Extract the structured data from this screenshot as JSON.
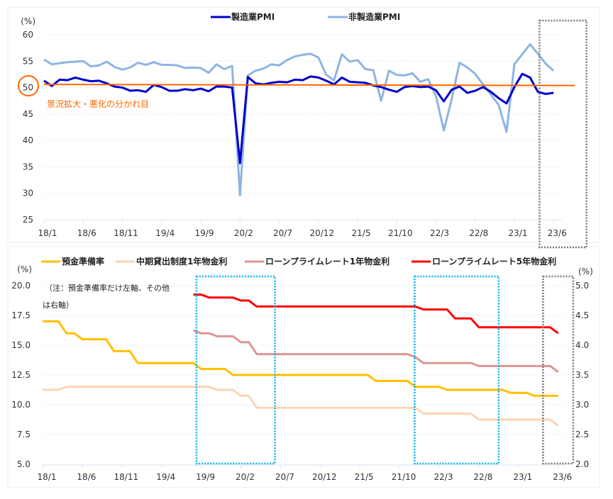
{
  "chart_data": [
    {
      "type": "line",
      "title": "",
      "ylabel": "(%)",
      "ylim": [
        25,
        60
      ],
      "yticks": [
        25,
        30,
        35,
        40,
        45,
        50,
        55,
        60
      ],
      "x_start": "2018/1",
      "x_end": "2023/6",
      "xtick_labels": [
        "18/1",
        "18/6",
        "18/11",
        "19/4",
        "19/9",
        "20/2",
        "20/7",
        "20/12",
        "21/5",
        "21/10",
        "22/3",
        "22/8",
        "23/1",
        "23/6"
      ],
      "grid": true,
      "legend_placement": "top",
      "series": [
        {
          "name": "製造業PMI",
          "color": "#0000cc",
          "values": [
            51.3,
            50.3,
            51.5,
            51.4,
            51.9,
            51.5,
            51.2,
            51.3,
            50.8,
            50.2,
            50.0,
            49.4,
            49.5,
            49.2,
            50.5,
            50.1,
            49.4,
            49.4,
            49.7,
            49.5,
            49.8,
            49.3,
            50.2,
            50.2,
            50.0,
            35.7,
            52.0,
            50.8,
            50.6,
            50.9,
            51.1,
            51.0,
            51.5,
            51.4,
            52.1,
            51.9,
            51.3,
            50.6,
            51.9,
            51.1,
            51.0,
            50.9,
            50.4,
            50.1,
            49.6,
            49.2,
            50.1,
            50.3,
            50.1,
            50.2,
            49.5,
            47.4,
            49.6,
            50.2,
            49.0,
            49.4,
            50.1,
            49.2,
            48.0,
            47.0,
            50.1,
            52.6,
            51.9,
            49.2,
            48.8,
            49.0
          ]
        },
        {
          "name": "非製造業PMI",
          "color": "#8eb4e3",
          "values": [
            55.3,
            54.4,
            54.6,
            54.8,
            54.9,
            55.0,
            54.0,
            54.2,
            54.9,
            53.9,
            53.4,
            53.8,
            54.7,
            54.3,
            54.8,
            54.3,
            54.3,
            54.2,
            53.7,
            53.8,
            53.7,
            52.8,
            54.4,
            53.5,
            54.1,
            29.6,
            52.3,
            53.2,
            53.6,
            54.4,
            54.2,
            55.2,
            55.9,
            56.2,
            56.4,
            55.7,
            52.4,
            51.4,
            56.3,
            54.9,
            55.2,
            53.5,
            53.3,
            47.5,
            53.2,
            52.4,
            52.3,
            52.7,
            51.1,
            51.6,
            48.4,
            41.9,
            47.8,
            54.7,
            53.8,
            52.6,
            50.6,
            48.7,
            46.7,
            41.6,
            54.4,
            56.3,
            58.2,
            56.4,
            54.5,
            53.2
          ]
        }
      ],
      "reference_line": {
        "value": 50,
        "color": "#ff6600",
        "label": "景況拡大・悪化の分かれ目",
        "circled_tick": "50"
      },
      "highlights": [
        {
          "from_month_index": 63.2,
          "to_month_index": 69.2,
          "color": "#777777"
        }
      ]
    },
    {
      "type": "line",
      "ylabel_left": "(%)",
      "ylabel_right": "(%)",
      "ylim_left": [
        5,
        20
      ],
      "yticks_left": [
        "5.0",
        "7.5",
        "10.0",
        "12.5",
        "15.0",
        "17.5",
        "20.0"
      ],
      "ylim_right": [
        2,
        5
      ],
      "yticks_right": [
        "2.0",
        "2.5",
        "3.0",
        "3.5",
        "4.0",
        "4.5",
        "5.0"
      ],
      "x_start": "2018/1",
      "x_end": "2023/6",
      "xtick_labels": [
        "18/1",
        "18/6",
        "18/11",
        "19/4",
        "19/9",
        "20/2",
        "20/7",
        "20/12",
        "21/5",
        "21/10",
        "22/3",
        "22/8",
        "23/1",
        "23/6"
      ],
      "grid": true,
      "legend_placement": "top",
      "note_lines": [
        "（注：預金準備率だけ左軸、その他",
        "は右軸）"
      ],
      "series": [
        {
          "name": "預金準備率",
          "axis": "left",
          "color": "#ffc000",
          "start_index": 0,
          "values": [
            17,
            17,
            17,
            16,
            16,
            15.5,
            15.5,
            15.5,
            15.5,
            14.5,
            14.5,
            14.5,
            13.5,
            13.5,
            13.5,
            13.5,
            13.5,
            13.5,
            13.5,
            13.5,
            13,
            13,
            13,
            13,
            12.5,
            12.5,
            12.5,
            12.5,
            12.5,
            12.5,
            12.5,
            12.5,
            12.5,
            12.5,
            12.5,
            12.5,
            12.5,
            12.5,
            12.5,
            12.5,
            12.5,
            12.5,
            12,
            12,
            12,
            12,
            12,
            11.5,
            11.5,
            11.5,
            11.5,
            11.25,
            11.25,
            11.25,
            11.25,
            11.25,
            11.25,
            11.25,
            11.25,
            11,
            11,
            11,
            10.75,
            10.75,
            10.75,
            10.75
          ]
        },
        {
          "name": "中期貸出制度1年物金利",
          "axis": "right",
          "color": "#fcd5b5",
          "start_index": 0,
          "values": [
            3.25,
            3.25,
            3.25,
            3.3,
            3.3,
            3.3,
            3.3,
            3.3,
            3.3,
            3.3,
            3.3,
            3.3,
            3.3,
            3.3,
            3.3,
            3.3,
            3.3,
            3.3,
            3.3,
            3.3,
            3.3,
            3.3,
            3.25,
            3.25,
            3.25,
            3.15,
            3.15,
            2.95,
            2.95,
            2.95,
            2.95,
            2.95,
            2.95,
            2.95,
            2.95,
            2.95,
            2.95,
            2.95,
            2.95,
            2.95,
            2.95,
            2.95,
            2.95,
            2.95,
            2.95,
            2.95,
            2.95,
            2.95,
            2.85,
            2.85,
            2.85,
            2.85,
            2.85,
            2.85,
            2.85,
            2.75,
            2.75,
            2.75,
            2.75,
            2.75,
            2.75,
            2.75,
            2.75,
            2.75,
            2.75,
            2.65
          ]
        },
        {
          "name": "ローンプライムレート1年物金利",
          "axis": "right",
          "color": "#da9694",
          "start_index": 19,
          "values": [
            4.25,
            4.2,
            4.2,
            4.15,
            4.15,
            4.15,
            4.05,
            4.05,
            3.85,
            3.85,
            3.85,
            3.85,
            3.85,
            3.85,
            3.85,
            3.85,
            3.85,
            3.85,
            3.85,
            3.85,
            3.85,
            3.85,
            3.85,
            3.85,
            3.85,
            3.85,
            3.85,
            3.85,
            3.8,
            3.7,
            3.7,
            3.7,
            3.7,
            3.7,
            3.7,
            3.7,
            3.65,
            3.65,
            3.65,
            3.65,
            3.65,
            3.65,
            3.65,
            3.65,
            3.65,
            3.65,
            3.55
          ]
        },
        {
          "name": "ローンプライムレート5年物金利",
          "axis": "right",
          "color": "#ff0000",
          "start_index": 19,
          "values": [
            4.85,
            4.85,
            4.8,
            4.8,
            4.8,
            4.8,
            4.75,
            4.75,
            4.65,
            4.65,
            4.65,
            4.65,
            4.65,
            4.65,
            4.65,
            4.65,
            4.65,
            4.65,
            4.65,
            4.65,
            4.65,
            4.65,
            4.65,
            4.65,
            4.65,
            4.65,
            4.65,
            4.65,
            4.65,
            4.6,
            4.6,
            4.6,
            4.6,
            4.45,
            4.45,
            4.45,
            4.3,
            4.3,
            4.3,
            4.3,
            4.3,
            4.3,
            4.3,
            4.3,
            4.3,
            4.3,
            4.2
          ]
        }
      ],
      "highlights": [
        {
          "from_month_index": 19.4,
          "to_month_index": 29.3,
          "color": "#00b0f0"
        },
        {
          "from_month_index": 46.9,
          "to_month_index": 57.5,
          "color": "#00b0f0"
        },
        {
          "from_month_index": 63.1,
          "to_month_index": 66.9,
          "color": "#777777"
        }
      ]
    }
  ]
}
